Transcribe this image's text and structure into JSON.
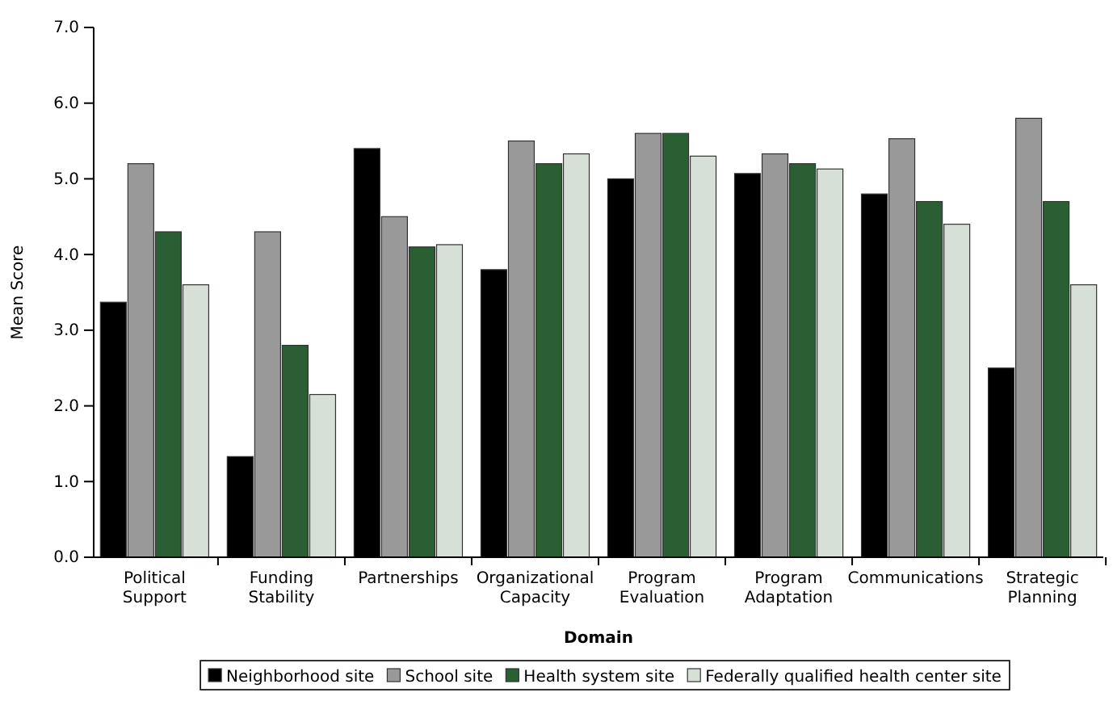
{
  "chart_data": {
    "type": "bar",
    "xlabel": "Domain",
    "ylabel": "Mean Score",
    "categories": [
      "Political Support",
      "Funding Stability",
      "Partnerships",
      "Organizational Capacity",
      "Program Evaluation",
      "Program Adaptation",
      "Communications",
      "Strategic Planning"
    ],
    "series": [
      {
        "name": "Neighborhood site",
        "color": "#000000",
        "values": [
          3.37,
          1.33,
          5.4,
          3.8,
          5.0,
          5.07,
          4.8,
          2.5
        ]
      },
      {
        "name": "School site",
        "color": "#999999",
        "values": [
          5.2,
          4.3,
          4.5,
          5.5,
          5.6,
          5.33,
          5.53,
          5.8
        ]
      },
      {
        "name": "Health system site",
        "color": "#2a5e33",
        "values": [
          4.3,
          2.8,
          4.1,
          5.2,
          5.6,
          5.2,
          4.7,
          4.7
        ]
      },
      {
        "name": "Federally qualified health center site",
        "color": "#d6e0d6",
        "values": [
          3.6,
          2.15,
          4.13,
          5.33,
          5.3,
          5.13,
          4.4,
          3.6
        ]
      }
    ],
    "ylim": [
      0,
      7
    ],
    "yticks": [
      {
        "value": 0,
        "label": "0.0"
      },
      {
        "value": 1,
        "label": "1.0"
      },
      {
        "value": 2,
        "label": "2.0"
      },
      {
        "value": 3,
        "label": "3.0"
      },
      {
        "value": 4,
        "label": "4.0"
      },
      {
        "value": 5,
        "label": "5.0"
      },
      {
        "value": 6,
        "label": "6.0"
      },
      {
        "value": 7,
        "label": "7.0"
      }
    ],
    "grid": false,
    "legend": "bottom"
  }
}
